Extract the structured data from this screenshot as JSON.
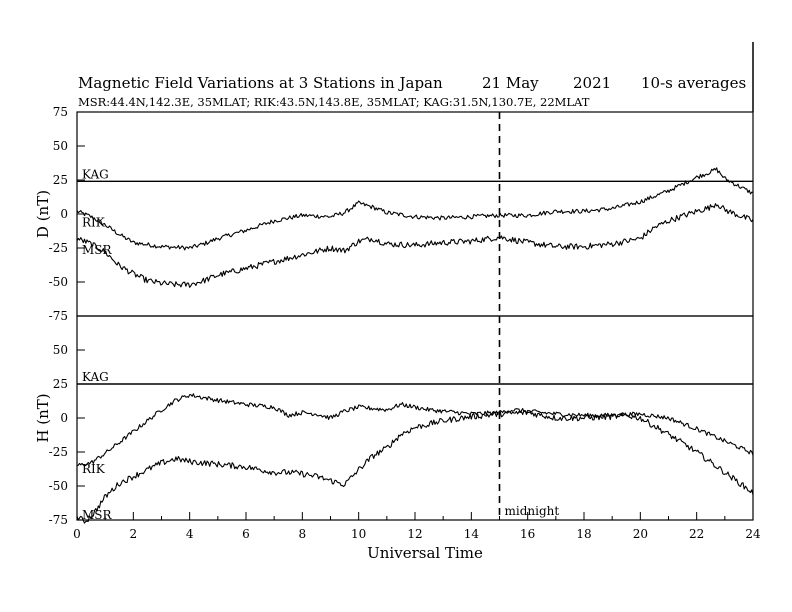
{
  "chart_data": {
    "type": "line",
    "title": "Magnetic Field Variations at 3 Stations in Japan",
    "date": "21 May",
    "year": "2021",
    "averaging": "10-s averages",
    "stations_line": "MSR:44.4N,142.3E, 35MLAT;  RIK:43.5N,143.8E, 35MLAT;  KAG:31.5N,130.7E, 22MLAT",
    "xlabel": "Universal Time",
    "xlim": [
      0,
      24
    ],
    "xticks": [
      0,
      2,
      4,
      6,
      8,
      10,
      12,
      14,
      16,
      18,
      20,
      22,
      24
    ],
    "midnight": {
      "x": 15,
      "label": "midnight"
    },
    "panels": [
      {
        "ylabel": "D (nT)",
        "ylim": [
          -75,
          75
        ],
        "yticks": [
          75,
          50,
          25,
          0,
          -25,
          -50,
          -75
        ],
        "series": [
          {
            "name": "KAG",
            "x": [
              0,
              24
            ],
            "y": [
              24,
              24
            ]
          },
          {
            "name": "RIK",
            "x": [
              0,
              0.5,
              1,
              1.5,
              2,
              3,
              4,
              4.5,
              5,
              6,
              7,
              8,
              9,
              9.5,
              10,
              10.5,
              11,
              12,
              13,
              14,
              15,
              16,
              17,
              18,
              19,
              20,
              21,
              22,
              22.5,
              22.7,
              23,
              24
            ],
            "y": [
              2,
              -2,
              -8,
              -15,
              -21,
              -24,
              -25,
              -22,
              -18,
              -12,
              -5,
              -1,
              -2,
              1,
              8,
              5,
              1,
              -2,
              -3,
              -2,
              -1,
              -1,
              2,
              2,
              4,
              9,
              17,
              27,
              31,
              33,
              26,
              15
            ]
          },
          {
            "name": "MSR",
            "x": [
              0,
              0.5,
              1,
              1.5,
              2,
              2.5,
              3,
              3.5,
              4,
              4.5,
              5,
              6,
              7,
              8,
              9,
              9.5,
              10,
              10.5,
              11,
              12,
              13,
              14,
              15,
              15.5,
              16,
              17,
              18,
              19,
              20,
              20.5,
              21,
              22,
              22.5,
              22.7,
              23,
              24
            ],
            "y": [
              -18,
              -22,
              -28,
              -38,
              -44,
              -49,
              -51,
              -52,
              -52,
              -49,
              -45,
              -40,
              -35,
              -30,
              -25,
              -27,
              -20,
              -18,
              -22,
              -23,
              -21,
              -20,
              -17,
              -19,
              -21,
              -24,
              -24,
              -22,
              -18,
              -10,
              -5,
              2,
              5,
              8,
              3,
              -5
            ]
          }
        ]
      },
      {
        "ylabel": "H (nT)",
        "ylim": [
          -75,
          75
        ],
        "yticks": [
          75,
          50,
          25,
          0,
          -25,
          -50,
          -75
        ],
        "series": [
          {
            "name": "KAG",
            "x": [
              0,
              24
            ],
            "y": [
              25,
              25
            ]
          },
          {
            "name": "RIK",
            "x": [
              0,
              0.5,
              1,
              1.5,
              2,
              2.5,
              3,
              3.5,
              4,
              5,
              6,
              7,
              7.5,
              8,
              8.5,
              9,
              9.5,
              10,
              11,
              11.5,
              12,
              12.5,
              13,
              14,
              15,
              15.5,
              16,
              17,
              18,
              19,
              20,
              21,
              22,
              23,
              24
            ],
            "y": [
              -35,
              -33,
              -26,
              -18,
              -10,
              -2,
              6,
              13,
              17,
              13,
              10,
              8,
              2,
              4,
              3,
              0,
              5,
              8,
              6,
              10,
              8,
              6,
              5,
              3,
              4,
              6,
              5,
              3,
              2,
              2,
              3,
              0,
              -8,
              -17,
              -26
            ]
          },
          {
            "name": "MSR",
            "x": [
              0,
              0.3,
              0.6,
              1,
              1.5,
              2,
              2.5,
              3,
              3.5,
              4,
              5,
              6,
              6.5,
              7,
              7.5,
              8,
              8.5,
              9,
              9.5,
              10,
              10.5,
              11,
              11.5,
              12,
              13,
              14,
              15,
              16,
              17,
              18,
              19,
              19.5,
              20,
              20.5,
              21,
              22,
              23,
              24
            ],
            "y": [
              -73,
              -76,
              -70,
              -58,
              -48,
              -43,
              -38,
              -33,
              -30,
              -32,
              -34,
              -36,
              -38,
              -40,
              -40,
              -41,
              -43,
              -46,
              -49,
              -38,
              -28,
              -22,
              -12,
              -7,
              -2,
              1,
              3,
              4,
              0,
              0,
              1,
              2,
              0,
              -6,
              -12,
              -25,
              -40,
              -55
            ]
          }
        ]
      }
    ]
  }
}
